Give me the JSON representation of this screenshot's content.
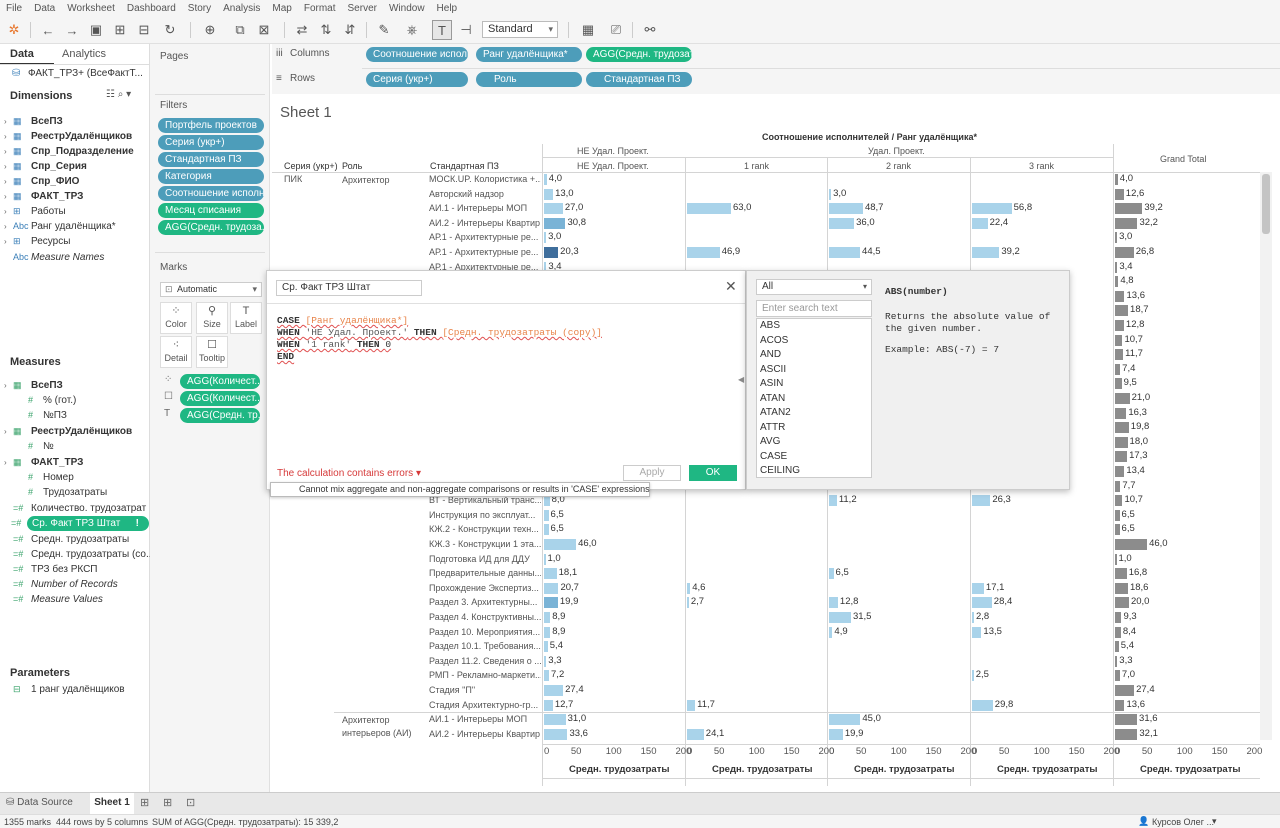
{
  "menu": [
    "File",
    "Data",
    "Worksheet",
    "Dashboard",
    "Story",
    "Analysis",
    "Map",
    "Format",
    "Server",
    "Window",
    "Help"
  ],
  "toolbar": {
    "mark_size_select": "Standard"
  },
  "data_pane": {
    "tab_data": "Data",
    "tab_analytics": "Analytics",
    "datasource": "ФАКТ_ТРЗ+ (ВсеФактТ...",
    "dimensions_label": "Dimensions",
    "dimensions": [
      {
        "label": "ВсеПЗ",
        "bold": true
      },
      {
        "label": "РеестрУдалёнщиков",
        "bold": true
      },
      {
        "label": "Спр_Подразделение",
        "bold": true
      },
      {
        "label": "Спр_Серия",
        "bold": true
      },
      {
        "label": "Спр_ФИО",
        "bold": true
      },
      {
        "label": "ФАКТ_ТРЗ",
        "bold": true
      },
      {
        "label": "Работы",
        "bold": false
      },
      {
        "label": "Ранг удалёнщика*",
        "bold": false
      },
      {
        "label": "Ресурсы",
        "bold": false
      },
      {
        "label": "Measure Names",
        "bold": false
      }
    ],
    "measures_label": "Measures",
    "measures": [
      {
        "label": "ВсеПЗ",
        "bold": true,
        "indent": 0
      },
      {
        "label": "% (гот.)",
        "bold": false,
        "indent": 1
      },
      {
        "label": "№ПЗ",
        "bold": false,
        "indent": 1
      },
      {
        "label": "РеестрУдалёнщиков",
        "bold": true,
        "indent": 0
      },
      {
        "label": "№",
        "bold": false,
        "indent": 1
      },
      {
        "label": "ФАКТ_ТРЗ",
        "bold": true,
        "indent": 0
      },
      {
        "label": "Номер",
        "bold": false,
        "indent": 1
      },
      {
        "label": "Трудозатраты",
        "bold": false,
        "indent": 1
      },
      {
        "label": "Количество. трудозатрат",
        "bold": false,
        "indent": 0
      },
      {
        "label": "Ср. Факт ТРЗ Штат",
        "bold": false,
        "indent": 0
      },
      {
        "label": "Средн. трудозатраты",
        "bold": false,
        "indent": 0
      },
      {
        "label": "Средн. трудозатраты (со...",
        "bold": false,
        "indent": 0
      },
      {
        "label": "ТРЗ без РКСП",
        "bold": false,
        "indent": 0
      },
      {
        "label": "Number of Records",
        "bold": false,
        "indent": 0
      },
      {
        "label": "Measure Values",
        "bold": false,
        "indent": 0
      }
    ],
    "parameters_label": "Parameters",
    "parameters": [
      "1 ранг удалёнщиков"
    ]
  },
  "pages_label": "Pages",
  "filters_label": "Filters",
  "filters": [
    {
      "label": "Портфель проектов",
      "color": "blue"
    },
    {
      "label": "Серия (укр+)",
      "color": "blue"
    },
    {
      "label": "Стандартная ПЗ",
      "color": "blue"
    },
    {
      "label": "Категория",
      "color": "blue"
    },
    {
      "label": "Соотношение исполн...",
      "color": "blue"
    },
    {
      "label": "Месяц списания",
      "color": "green"
    },
    {
      "label": "AGG(Средн. трудоза...",
      "color": "green"
    }
  ],
  "marks": {
    "label": "Marks",
    "type": "Automatic",
    "buttons": [
      "Color",
      "Size",
      "Label",
      "Detail",
      "Tooltip"
    ],
    "pills": [
      "AGG(Количест...",
      "AGG(Количест...",
      "AGG(Средн. тр..."
    ]
  },
  "shelves": {
    "columns_label": "Columns",
    "rows_label": "Rows",
    "columns": [
      "Соотношение исполнит...",
      "Ранг удалёнщика*",
      "AGG(Средн. трудозат..."
    ],
    "rows": [
      "Серия (укр+)",
      "Роль",
      "Стандартная ПЗ"
    ]
  },
  "sheet": {
    "title": "Sheet 1",
    "top_header": "Соотношение исполнителей / Ранг удалёнщика*",
    "header_ne": "НЕ Удал. Проект.",
    "header_ne_sub": "НЕ Удал. Проект.",
    "header_udal": "Удал. Проект.",
    "rank_headers": [
      "1 rank",
      "2 rank",
      "3 rank"
    ],
    "grand_total": "Grand Total",
    "row_headers": [
      "Серия (укр+)",
      "Роль",
      "Стандартная ПЗ"
    ],
    "axis_title": "Средн. трудозатраты",
    "axis_ticks": [
      "0",
      "50",
      "100",
      "150",
      "200"
    ]
  },
  "chart_data": {
    "type": "bar",
    "columns": [
      "НЕ Удал. Проект.",
      "1 rank",
      "2 rank",
      "3 rank",
      "Grand Total"
    ],
    "xlim": [
      0,
      200
    ],
    "xlabel": "Средн. трудозатраты",
    "rows": [
      {
        "series": "ПИК",
        "role": "Архитектор",
        "pz": "МОСК.UP. Колористика +...",
        "v": [
          4.0,
          null,
          null,
          null,
          4.0
        ]
      },
      {
        "pz": "Авторский надзор",
        "v": [
          13.0,
          null,
          3.0,
          null,
          12.6
        ]
      },
      {
        "pz": "АИ.1 - Интерьеры МОП",
        "v": [
          27.0,
          63.0,
          48.7,
          56.8,
          39.2
        ]
      },
      {
        "pz": "АИ.2 - Интерьеры Квартир",
        "v": [
          30.8,
          null,
          36.0,
          22.4,
          32.2
        ]
      },
      {
        "pz": "АР.1 - Архитектурные ре...",
        "v": [
          3.0,
          null,
          null,
          null,
          3.0
        ]
      },
      {
        "pz": "АР.1 - Архитектурные ре...",
        "v": [
          20.3,
          46.9,
          44.5,
          39.2,
          26.8
        ]
      },
      {
        "pz": "АР.1 - Архитектурные ре...",
        "v": [
          3.4,
          null,
          null,
          null,
          3.4
        ]
      },
      {
        "v": [
          null,
          null,
          null,
          null,
          4.8
        ]
      },
      {
        "v": [
          null,
          null,
          null,
          null,
          13.6
        ]
      },
      {
        "v": [
          null,
          null,
          null,
          null,
          18.7
        ]
      },
      {
        "v": [
          null,
          null,
          null,
          null,
          12.8
        ]
      },
      {
        "v": [
          null,
          null,
          null,
          null,
          10.7
        ]
      },
      {
        "v": [
          null,
          null,
          null,
          null,
          11.7
        ]
      },
      {
        "v": [
          null,
          null,
          null,
          null,
          7.4
        ]
      },
      {
        "v": [
          null,
          null,
          null,
          null,
          9.5
        ]
      },
      {
        "v": [
          null,
          null,
          null,
          null,
          21.0
        ]
      },
      {
        "v": [
          null,
          null,
          null,
          null,
          16.3
        ]
      },
      {
        "v": [
          null,
          null,
          null,
          null,
          19.8
        ]
      },
      {
        "v": [
          null,
          null,
          null,
          null,
          18.0
        ]
      },
      {
        "v": [
          null,
          null,
          null,
          null,
          17.3
        ]
      },
      {
        "v": [
          null,
          null,
          null,
          null,
          13.4
        ]
      },
      {
        "v": [
          null,
          null,
          null,
          null,
          7.7
        ]
      },
      {
        "pz": "ВТ - Вертикальный транс...",
        "v": [
          8.0,
          null,
          11.2,
          26.3,
          10.7
        ]
      },
      {
        "pz": "Инструкция по эксплуат...",
        "v": [
          6.5,
          null,
          null,
          null,
          6.5
        ]
      },
      {
        "pz": "КЖ.2 - Конструкции техн...",
        "v": [
          6.5,
          null,
          null,
          null,
          6.5
        ]
      },
      {
        "pz": "КЖ.3 - Конструкции 1 эта...",
        "v": [
          46.0,
          null,
          null,
          null,
          46.0
        ]
      },
      {
        "pz": "Подготовка ИД для ДДУ",
        "v": [
          1.0,
          null,
          null,
          null,
          1.0
        ]
      },
      {
        "pz": "Предварительные данны...",
        "v": [
          18.1,
          null,
          6.5,
          null,
          16.8
        ]
      },
      {
        "pz": "Прохождение Экспертиз...",
        "v": [
          20.7,
          4.6,
          null,
          17.1,
          18.6
        ]
      },
      {
        "pz": "Раздел 3. Архитектурны...",
        "v": [
          19.9,
          2.7,
          12.8,
          28.4,
          20.0
        ]
      },
      {
        "pz": "Раздел 4. Конструктивны...",
        "v": [
          8.9,
          null,
          31.5,
          2.8,
          9.3
        ]
      },
      {
        "pz": "Раздел 10. Мероприятия...",
        "v": [
          8.9,
          null,
          4.9,
          13.5,
          8.4
        ]
      },
      {
        "pz": "Раздел 10.1. Требования...",
        "v": [
          5.4,
          null,
          null,
          null,
          5.4
        ]
      },
      {
        "pz": "Раздел 11.2. Сведения о ...",
        "v": [
          3.3,
          null,
          null,
          null,
          3.3
        ]
      },
      {
        "pz": "РМП - Рекламно-маркети...",
        "v": [
          7.2,
          null,
          null,
          2.5,
          7.0
        ]
      },
      {
        "pz": "Стадия \"П\"",
        "v": [
          27.4,
          null,
          null,
          null,
          27.4
        ]
      },
      {
        "pz": "Стадия Архитектурно-гр...",
        "v": [
          12.7,
          11.7,
          null,
          29.8,
          13.6
        ]
      },
      {
        "role": "Архитектор интерьеров (АИ)",
        "pz": "АИ.1 - Интерьеры МОП",
        "v": [
          31.0,
          null,
          45.0,
          null,
          31.6
        ]
      },
      {
        "pz": "АИ.2 - Интерьеры Квартир",
        "v": [
          33.6,
          24.1,
          19.9,
          null,
          32.1
        ]
      }
    ]
  },
  "calc_dialog": {
    "name": "Ср. Факт ТРЗ Штат",
    "code": [
      [
        {
          "t": "CASE ",
          "c": "kw"
        },
        {
          "t": "[Ранг удалёнщика*]",
          "c": "fld"
        }
      ],
      [
        {
          "t": "WHEN ",
          "c": "kw"
        },
        {
          "t": "'НЕ Удал. Проект.'",
          "c": "str"
        },
        {
          "t": " THEN ",
          "c": "kw"
        },
        {
          "t": "[Средн. трудозатраты (сору)]",
          "c": "fld"
        }
      ],
      [
        {
          "t": "WHEN ",
          "c": "kw"
        },
        {
          "t": "'1 rank'",
          "c": "str"
        },
        {
          "t": " THEN ",
          "c": "kw"
        },
        {
          "t": "0",
          "c": "num"
        }
      ],
      [
        {
          "t": "END",
          "c": "kw"
        }
      ]
    ],
    "error_label": "The calculation contains errors",
    "error_tooltip": "Cannot mix aggregate and non-aggregate comparisons or results in 'CASE' expressions",
    "apply_label": "Apply",
    "ok_label": "OK"
  },
  "functions": {
    "category": "All",
    "search_placeholder": "Enter search text",
    "list": [
      "ABS",
      "ACOS",
      "AND",
      "ASCII",
      "ASIN",
      "ATAN",
      "ATAN2",
      "ATTR",
      "AVG",
      "CASE",
      "CEILING"
    ],
    "help_sig": "ABS(number)",
    "help_desc": "Returns the absolute value of the given number.",
    "help_example": "Example: ABS(-7) = 7"
  },
  "bottom": {
    "datasource_tab": "Data Source",
    "sheet_tab": "Sheet 1",
    "status": [
      "1355 marks",
      "444 rows by 5 columns",
      "SUM of AGG(Средн. трудозатраты): 15 339,2"
    ],
    "user": "Курсов Олег ..."
  },
  "colors": {
    "bar_light": "#a9d3ea",
    "bar_mid": "#7ab3d6",
    "bar_dark": "#3f6e9c",
    "total": "#8c8c8c",
    "green": "#1fb783",
    "blue_pill": "#4d9dba"
  }
}
